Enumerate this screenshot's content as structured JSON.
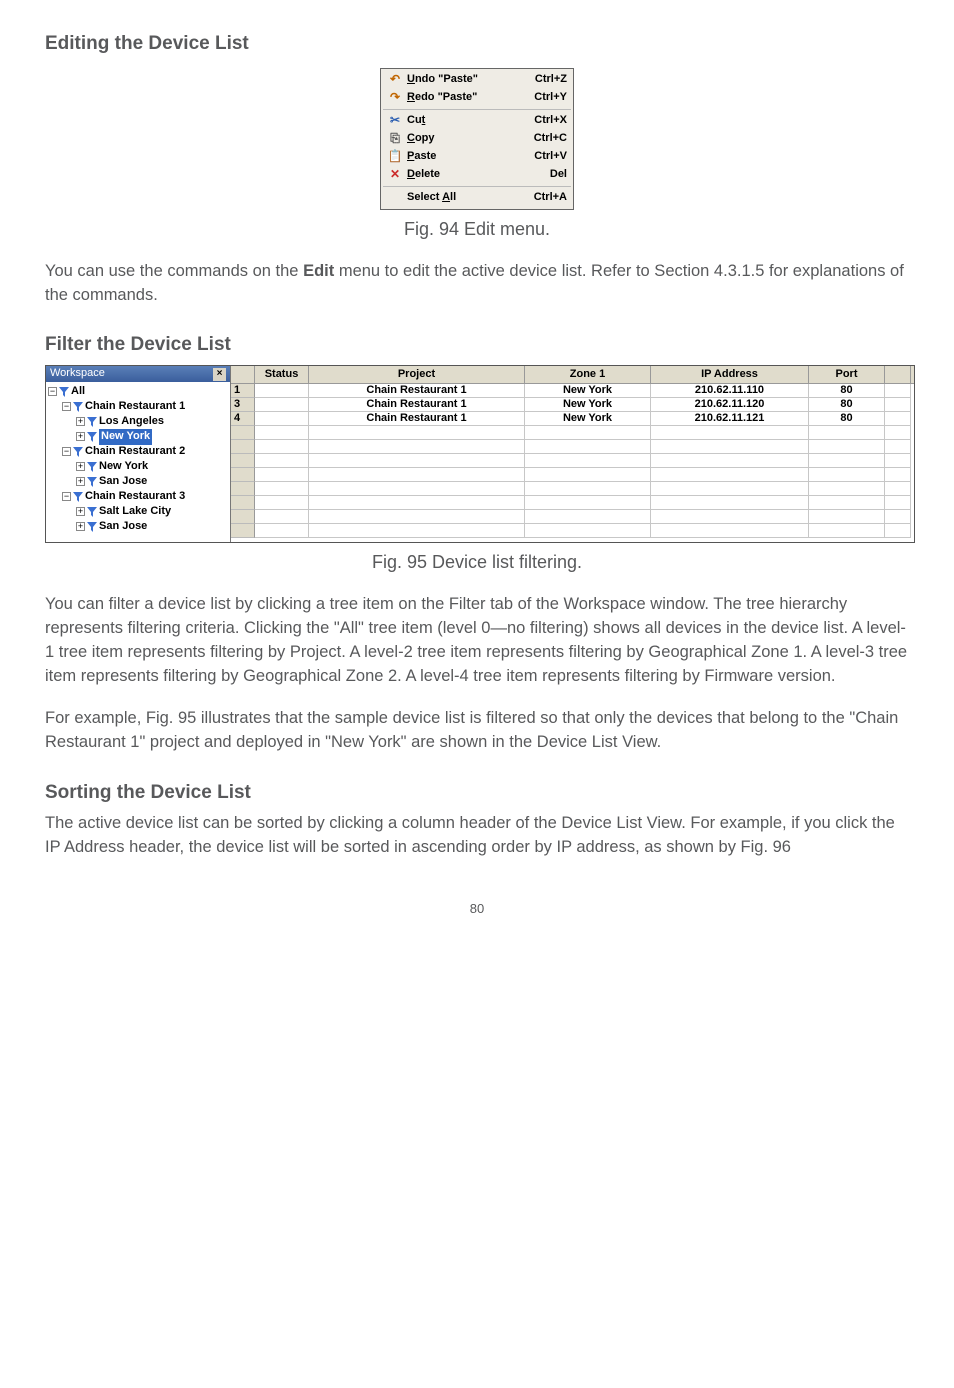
{
  "headings": {
    "edit_heading": "Editing the Device List",
    "filter_heading": "Filter the Device List",
    "sort_heading": "Sorting the Device List"
  },
  "edit_menu": {
    "items": [
      {
        "icon_color": "#c06500",
        "icon": "↶",
        "label_pre": "",
        "u": "U",
        "label_post": "ndo \"Paste\"",
        "shortcut": "Ctrl+Z"
      },
      {
        "icon_color": "#c06500",
        "icon": "↷",
        "label_pre": "",
        "u": "R",
        "label_post": "edo \"Paste\"",
        "shortcut": "Ctrl+Y"
      }
    ],
    "items2": [
      {
        "icon_color": "#2a5db0",
        "icon": "✂",
        "label_pre": "Cu",
        "u": "t",
        "label_post": "",
        "shortcut": "Ctrl+X"
      },
      {
        "icon_color": "#555",
        "icon": "⎘",
        "label_pre": "",
        "u": "C",
        "label_post": "opy",
        "shortcut": "Ctrl+C"
      },
      {
        "icon_color": "#c06500",
        "icon": "📋",
        "label_pre": "",
        "u": "P",
        "label_post": "aste",
        "shortcut": "Ctrl+V"
      },
      {
        "icon_color": "#cc2b2b",
        "icon": "✕",
        "label_pre": "",
        "u": "D",
        "label_post": "elete",
        "shortcut": "Del"
      }
    ],
    "items3": [
      {
        "icon_color": "",
        "icon": "",
        "label_pre": "Select ",
        "u": "A",
        "label_post": "ll",
        "shortcut": "Ctrl+A"
      }
    ]
  },
  "captions": {
    "fig94": "Fig. 94 Edit menu.",
    "fig95": "Fig. 95 Device list filtering."
  },
  "para": {
    "p1a": "You can use the commands on the ",
    "p1b": "Edit",
    "p1c": " menu to edit the active device list. Refer to Section 4.3.1.5 for explanations of the commands.",
    "p2": "You can filter a device list by clicking a tree item on the Filter tab of the Workspace window. The tree hierarchy represents filtering criteria. Clicking the \"All\" tree item (level 0—no filtering) shows all devices in the device list. A level-1 tree item represents filtering by Project. A level-2 tree item represents filtering by Geographical Zone 1. A level-3 tree item represents filtering by Geographical Zone 2. A level-4 tree item represents filtering by Firmware version.",
    "p3": "For example, Fig. 95 illustrates that the sample device list is filtered so that only the devices that belong to the \"Chain Restaurant 1\" project and deployed in \"New York\" are shown in the Device List View.",
    "p4": "The active device list can be sorted by clicking a column header of the Device List View. For example, if you click the IP Address header, the device list will be sorted in ascending order by IP address, as shown by Fig. 96"
  },
  "workspace": {
    "title": "Workspace",
    "close": "×",
    "tree": [
      {
        "indent": 0,
        "exp": "−",
        "label": "All",
        "selected": false
      },
      {
        "indent": 1,
        "exp": "−",
        "label": "Chain Restaurant 1",
        "selected": false
      },
      {
        "indent": 2,
        "exp": "+",
        "label": "Los Angeles",
        "selected": false
      },
      {
        "indent": 2,
        "exp": "+",
        "label": "New York",
        "selected": true
      },
      {
        "indent": 1,
        "exp": "−",
        "label": "Chain Restaurant 2",
        "selected": false
      },
      {
        "indent": 2,
        "exp": "+",
        "label": "New York",
        "selected": false
      },
      {
        "indent": 2,
        "exp": "+",
        "label": "San Jose",
        "selected": false
      },
      {
        "indent": 1,
        "exp": "−",
        "label": "Chain Restaurant 3",
        "selected": false
      },
      {
        "indent": 2,
        "exp": "+",
        "label": "Salt Lake City",
        "selected": false
      },
      {
        "indent": 2,
        "exp": "+",
        "label": "San Jose",
        "selected": false
      }
    ]
  },
  "grid": {
    "headers": [
      "",
      "Status",
      "Project",
      "Zone 1",
      "IP Address",
      "Port",
      ""
    ],
    "rows": [
      {
        "num": "1",
        "status": "",
        "project": "Chain Restaurant 1",
        "zone": "New York",
        "ip": "210.62.11.110",
        "port": "80"
      },
      {
        "num": "3",
        "status": "",
        "project": "Chain Restaurant 1",
        "zone": "New York",
        "ip": "210.62.11.120",
        "port": "80"
      },
      {
        "num": "4",
        "status": "",
        "project": "Chain Restaurant 1",
        "zone": "New York",
        "ip": "210.62.11.121",
        "port": "80"
      }
    ],
    "empty_rows": 8
  },
  "page_number": "80",
  "colors": {
    "text": "#58595b",
    "menu_bg": "#efece5",
    "header_bg": "#e0dccc",
    "title_grad_top": "#5a7fb8",
    "title_grad_bot": "#3a5e9c",
    "selection": "#316ac5",
    "funnel": "#3a6fd1"
  }
}
